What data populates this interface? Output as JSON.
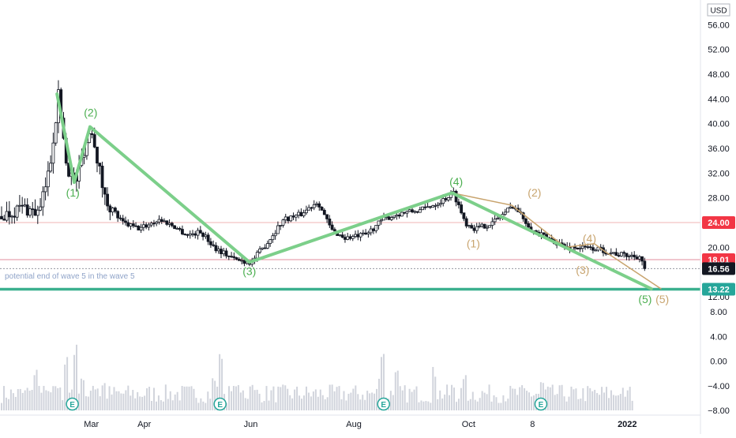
{
  "chart_data": {
    "type": "candlestick",
    "currency_label": "USD",
    "price_axis": {
      "ticks": [
        "56.00",
        "52.00",
        "48.00",
        "44.00",
        "40.00",
        "36.00",
        "32.00",
        "28.00",
        "24.00",
        "20.00",
        "12.00"
      ],
      "range": [
        11.5,
        60
      ]
    },
    "volume_axis": {
      "ticks": [
        "8.00",
        "4.00",
        "0.00",
        "−4.00",
        "−8.00"
      ],
      "range": [
        -8,
        8
      ]
    },
    "time_axis": {
      "labels": [
        "Mar",
        "Apr",
        "Jun",
        "Aug",
        "Oct",
        "8",
        "2022"
      ],
      "bold_labels": [
        "2022"
      ]
    },
    "price_tags": [
      {
        "text": "24.00",
        "value": 24.0,
        "color": "#f23645"
      },
      {
        "text": "18.01",
        "value": 18.01,
        "color": "#f23645"
      },
      {
        "text": "16.56",
        "value": 16.56,
        "color": "#131722"
      },
      {
        "text": "13.22",
        "value": 13.22,
        "color": "#26a69a"
      }
    ],
    "horizontal_lines": [
      {
        "value": 24.0,
        "color": "#f2b5b5"
      },
      {
        "value": 18.01,
        "color": "#e08c9c"
      },
      {
        "value": 16.56,
        "color": "#9598a1",
        "dashed": true
      },
      {
        "value": 13.22,
        "color": "#3bb08f",
        "thick": true
      }
    ],
    "annotation": "potential end of wave 5 in the wave 5",
    "primary_wave_line": [
      [
        0.083,
        44.8
      ],
      [
        0.108,
        30.5
      ],
      [
        0.131,
        39.5
      ],
      [
        0.363,
        17.6
      ],
      [
        0.658,
        28.8
      ],
      [
        0.948,
        13.3
      ]
    ],
    "secondary_wave_line": [
      [
        0.658,
        28.8
      ],
      [
        0.745,
        26.8
      ],
      [
        0.823,
        20.0
      ],
      [
        0.865,
        20.6
      ],
      [
        0.882,
        19.2
      ],
      [
        0.962,
        13.3
      ]
    ],
    "wave_labels": [
      {
        "text": "(2)",
        "t": 0.132,
        "price": 41.2,
        "color": "#4caf50"
      },
      {
        "text": "(1)",
        "t": 0.106,
        "price": 28.2,
        "color": "#4caf50"
      },
      {
        "text": "(3)",
        "t": 0.363,
        "price": 15.5,
        "color": "#4caf50"
      },
      {
        "text": "(4)",
        "t": 0.664,
        "price": 30.0,
        "color": "#4caf50"
      },
      {
        "text": "(5)",
        "t": 0.939,
        "price": 11.0,
        "color": "#4caf50"
      },
      {
        "text": "(2)",
        "t": 0.778,
        "price": 28.2,
        "color": "#c8a46e"
      },
      {
        "text": "(1)",
        "t": 0.689,
        "price": 20.0,
        "color": "#c8a46e"
      },
      {
        "text": "(4)",
        "t": 0.858,
        "price": 20.8,
        "color": "#c8a46e"
      },
      {
        "text": "(3)",
        "t": 0.848,
        "price": 15.7,
        "color": "#c8a46e"
      },
      {
        "text": "(5)",
        "t": 0.964,
        "price": 11.0,
        "color": "#c8a46e"
      }
    ],
    "price_anchors": [
      [
        0.0,
        25.0
      ],
      [
        0.03,
        26.5
      ],
      [
        0.055,
        25.5
      ],
      [
        0.07,
        33.0
      ],
      [
        0.083,
        44.8
      ],
      [
        0.095,
        33.0
      ],
      [
        0.108,
        30.5
      ],
      [
        0.118,
        35.0
      ],
      [
        0.131,
        39.5
      ],
      [
        0.15,
        28.0
      ],
      [
        0.175,
        24.0
      ],
      [
        0.2,
        23.0
      ],
      [
        0.23,
        24.5
      ],
      [
        0.25,
        23.5
      ],
      [
        0.27,
        22.0
      ],
      [
        0.29,
        22.5
      ],
      [
        0.31,
        20.0
      ],
      [
        0.34,
        18.0
      ],
      [
        0.363,
        17.6
      ],
      [
        0.385,
        20.5
      ],
      [
        0.41,
        24.5
      ],
      [
        0.435,
        25.3
      ],
      [
        0.46,
        27.5
      ],
      [
        0.48,
        22.8
      ],
      [
        0.5,
        21.5
      ],
      [
        0.53,
        22.0
      ],
      [
        0.555,
        24.5
      ],
      [
        0.58,
        25.5
      ],
      [
        0.61,
        26.0
      ],
      [
        0.64,
        27.5
      ],
      [
        0.658,
        28.8
      ],
      [
        0.675,
        24.0
      ],
      [
        0.69,
        23.0
      ],
      [
        0.715,
        24.0
      ],
      [
        0.745,
        26.8
      ],
      [
        0.775,
        22.5
      ],
      [
        0.823,
        20.0
      ],
      [
        0.865,
        19.8
      ],
      [
        0.9,
        18.8
      ],
      [
        0.93,
        18.5
      ],
      [
        0.936,
        16.56
      ]
    ],
    "earnings_markers": [
      {
        "text": "E",
        "t": 0.103
      },
      {
        "text": "E",
        "t": 0.318
      },
      {
        "text": "E",
        "t": 0.556
      },
      {
        "text": "E",
        "t": 0.785
      }
    ]
  }
}
